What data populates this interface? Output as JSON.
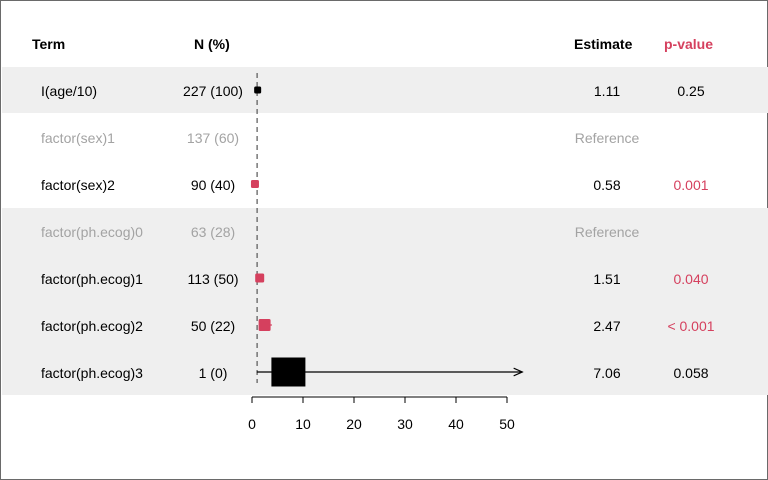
{
  "headers": {
    "term": "Term",
    "n": "N (%)",
    "estimate": "Estimate",
    "pvalue": "p-value"
  },
  "colors": {
    "band": "#efefef",
    "reference_text": "#a3a3a3",
    "significant": "#d5405e",
    "default": "#000000"
  },
  "rows": [
    {
      "term": "I(age/10)",
      "n": "227 (100)",
      "estimate_label": "1.11",
      "p_label": "0.25",
      "reference": false,
      "significant": false,
      "shaded": true
    },
    {
      "term": "factor(sex)1",
      "n": "137 (60)",
      "estimate_label": "Reference",
      "p_label": "",
      "reference": true,
      "significant": false,
      "shaded": false
    },
    {
      "term": "factor(sex)2",
      "n": "90 (40)",
      "estimate_label": "0.58",
      "p_label": "0.001",
      "reference": false,
      "significant": true,
      "shaded": false
    },
    {
      "term": "factor(ph.ecog)0",
      "n": "63 (28)",
      "estimate_label": "Reference",
      "p_label": "",
      "reference": true,
      "significant": false,
      "shaded": true
    },
    {
      "term": "factor(ph.ecog)1",
      "n": "113 (50)",
      "estimate_label": "1.51",
      "p_label": "0.040",
      "reference": false,
      "significant": true,
      "shaded": true
    },
    {
      "term": "factor(ph.ecog)2",
      "n": "50 (22)",
      "estimate_label": "2.47",
      "p_label": "< 0.001",
      "reference": false,
      "significant": true,
      "shaded": true
    },
    {
      "term": "factor(ph.ecog)3",
      "n": "1 (0)",
      "estimate_label": "7.06",
      "p_label": "0.058",
      "reference": false,
      "significant": false,
      "shaded": true
    }
  ],
  "chart_data": {
    "type": "forest",
    "xlim": [
      0,
      50
    ],
    "ticks": [
      0,
      10,
      20,
      30,
      40,
      50
    ],
    "tick_labels": [
      "0",
      "10",
      "20",
      "30",
      "40",
      "50"
    ],
    "reference_line": 1,
    "grid": false,
    "points": [
      {
        "term": "I(age/10)",
        "estimate": 1.11,
        "ci_low": 0.93,
        "ci_high": 1.32,
        "weight": 227,
        "significant": false
      },
      {
        "term": "factor(sex)2",
        "estimate": 0.58,
        "ci_low": 0.42,
        "ci_high": 0.8,
        "weight": 90,
        "significant": true
      },
      {
        "term": "factor(ph.ecog)1",
        "estimate": 1.51,
        "ci_low": 1.02,
        "ci_high": 2.23,
        "weight": 113,
        "significant": true
      },
      {
        "term": "factor(ph.ecog)2",
        "estimate": 2.47,
        "ci_low": 1.56,
        "ci_high": 3.91,
        "weight": 50,
        "significant": true
      },
      {
        "term": "factor(ph.ecog)3",
        "estimate": 7.06,
        "ci_low": 0.94,
        "ci_high": 53.2,
        "weight": 1,
        "significant": false,
        "truncated_high": true
      }
    ]
  }
}
